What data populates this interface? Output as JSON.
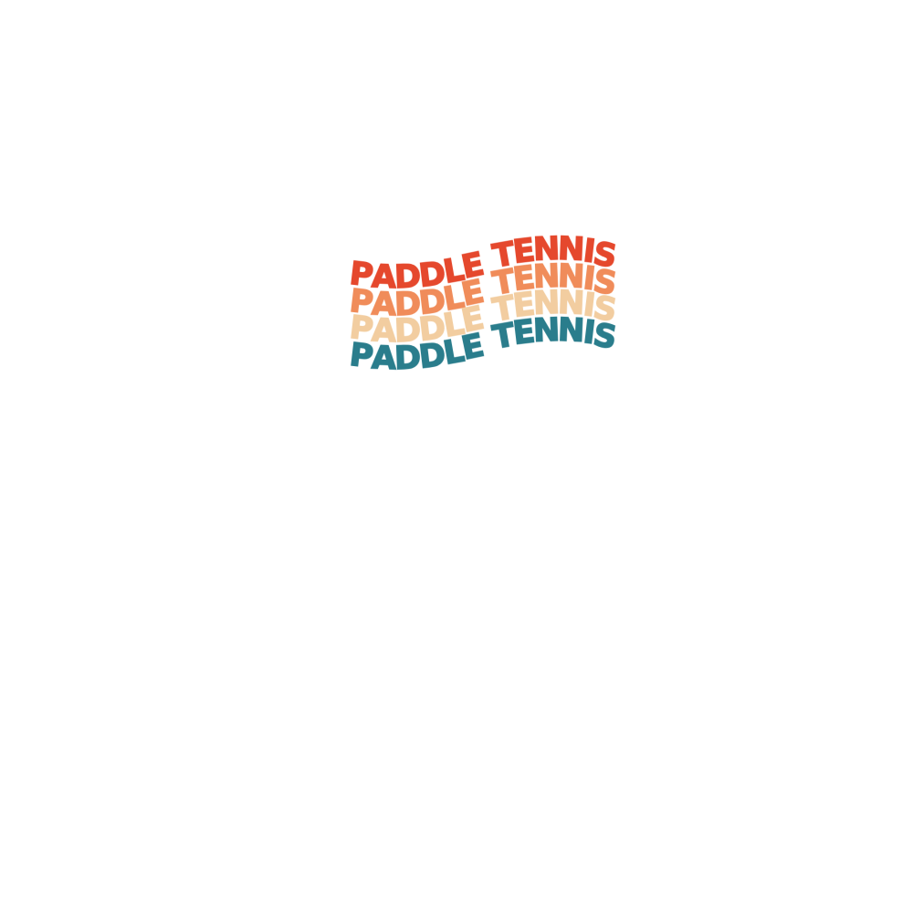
{
  "page": {
    "background_color": "#ffffff"
  },
  "design": {
    "name": "paddle-tennis-retro-wordmark",
    "style": "retro-wavy-stacked-text",
    "text": "PADDLE TENNIS",
    "lines": [
      {
        "text": "PADDLE TENNIS",
        "color": "#e5482d"
      },
      {
        "text": "PADDLE TENNIS",
        "color": "#f08c5a"
      },
      {
        "text": "PADDLE TENNIS",
        "color": "#f2cda0"
      },
      {
        "text": "PADDLE TENNIS",
        "color": "#2a7d8c"
      }
    ]
  }
}
